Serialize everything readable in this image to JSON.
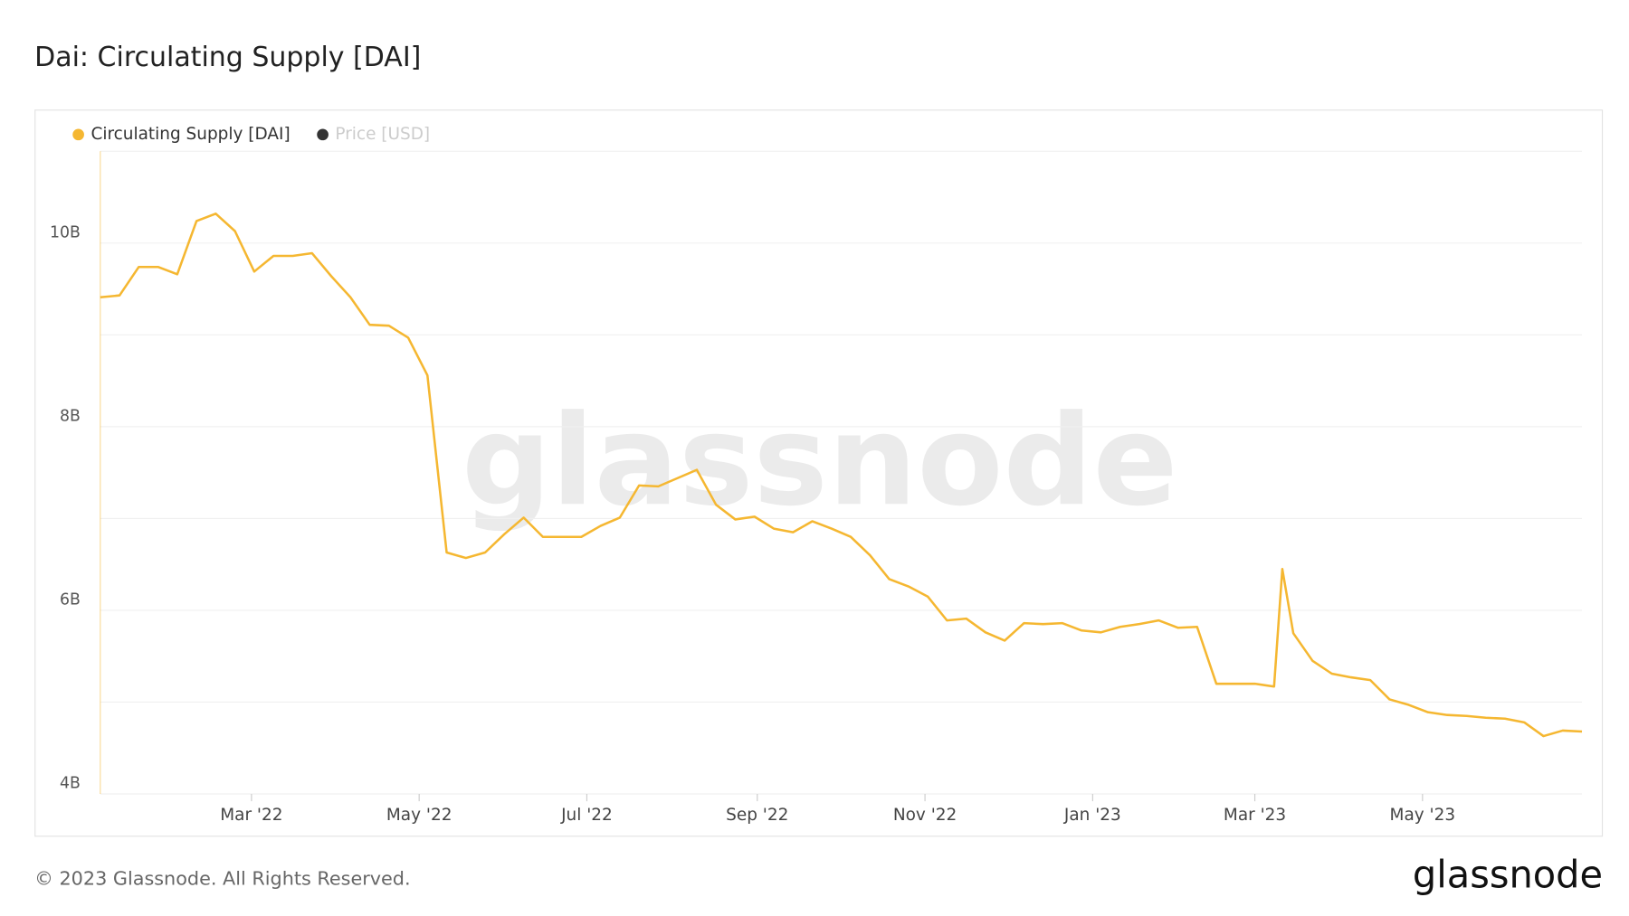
{
  "chart_data": {
    "type": "line",
    "title": "Dai: Circulating Supply [DAI]",
    "x": [
      "2022-01-05",
      "2022-01-12",
      "2022-01-19",
      "2022-01-26",
      "2022-02-02",
      "2022-02-09",
      "2022-02-16",
      "2022-02-23",
      "2022-03-02",
      "2022-03-09",
      "2022-03-16",
      "2022-03-23",
      "2022-03-30",
      "2022-04-06",
      "2022-04-13",
      "2022-04-20",
      "2022-04-27",
      "2022-05-04",
      "2022-05-11",
      "2022-05-18",
      "2022-05-25",
      "2022-06-01",
      "2022-06-08",
      "2022-06-15",
      "2022-06-22",
      "2022-06-29",
      "2022-07-06",
      "2022-07-13",
      "2022-07-20",
      "2022-07-27",
      "2022-08-03",
      "2022-08-10",
      "2022-08-17",
      "2022-08-24",
      "2022-08-31",
      "2022-09-07",
      "2022-09-14",
      "2022-09-21",
      "2022-09-28",
      "2022-10-05",
      "2022-10-12",
      "2022-10-19",
      "2022-10-26",
      "2022-11-02",
      "2022-11-09",
      "2022-11-16",
      "2022-11-23",
      "2022-11-30",
      "2022-12-07",
      "2022-12-14",
      "2022-12-21",
      "2022-12-28",
      "2023-01-04",
      "2023-01-11",
      "2023-01-18",
      "2023-01-25",
      "2023-02-01",
      "2023-02-08",
      "2023-02-15",
      "2023-02-22",
      "2023-03-01",
      "2023-03-08",
      "2023-03-11",
      "2023-03-15",
      "2023-03-22",
      "2023-03-29",
      "2023-04-05",
      "2023-04-12",
      "2023-04-19",
      "2023-04-26",
      "2023-05-03",
      "2023-05-10",
      "2023-05-17",
      "2023-05-24",
      "2023-05-31",
      "2023-06-07",
      "2023-06-14",
      "2023-06-21",
      "2023-06-28"
    ],
    "series": [
      {
        "name": "Circulating Supply [DAI]",
        "color": "#f5b731",
        "values": [
          9.41,
          9.43,
          9.74,
          9.74,
          9.66,
          10.24,
          10.32,
          10.13,
          9.69,
          9.86,
          9.86,
          9.89,
          9.64,
          9.41,
          9.11,
          9.1,
          8.97,
          8.56,
          6.63,
          6.57,
          6.63,
          6.83,
          7.01,
          6.8,
          6.8,
          6.8,
          6.92,
          7.01,
          7.36,
          7.35,
          7.44,
          7.53,
          7.15,
          6.99,
          7.02,
          6.89,
          6.85,
          6.97,
          6.89,
          6.8,
          6.6,
          6.34,
          6.26,
          6.15,
          5.89,
          5.91,
          5.76,
          5.67,
          5.86,
          5.85,
          5.86,
          5.78,
          5.76,
          5.82,
          5.85,
          5.89,
          5.81,
          5.82,
          5.2,
          5.2,
          5.2,
          5.17,
          6.45,
          5.75,
          5.45,
          5.31,
          5.27,
          5.24,
          5.03,
          4.97,
          4.89,
          4.86,
          4.85,
          4.83,
          4.82,
          4.78,
          4.63,
          4.69,
          4.68
        ]
      },
      {
        "name": "Price [USD]",
        "color": "#333333",
        "visible": false
      }
    ],
    "xlim": [
      "2022-01-05",
      "2023-06-28"
    ],
    "xticks": [
      {
        "value": "2022-03-01",
        "label": "Mar '22"
      },
      {
        "value": "2022-05-01",
        "label": "May '22"
      },
      {
        "value": "2022-07-01",
        "label": "Jul '22"
      },
      {
        "value": "2022-09-01",
        "label": "Sep '22"
      },
      {
        "value": "2022-11-01",
        "label": "Nov '22"
      },
      {
        "value": "2023-01-01",
        "label": "Jan '23"
      },
      {
        "value": "2023-03-01",
        "label": "Mar '23"
      },
      {
        "value": "2023-05-01",
        "label": "May '23"
      }
    ],
    "ylim": [
      4,
      11
    ],
    "yticks": [
      {
        "value": 4,
        "label": "4B"
      },
      {
        "value": 5,
        "label": null
      },
      {
        "value": 6,
        "label": "6B"
      },
      {
        "value": 7,
        "label": null
      },
      {
        "value": 8,
        "label": "8B"
      },
      {
        "value": 9,
        "label": null
      },
      {
        "value": 10,
        "label": "10B"
      },
      {
        "value": 11,
        "label": null
      }
    ],
    "grid": true,
    "legend": "top-left"
  },
  "watermark": "glassnode",
  "footer": {
    "copyright": "© 2023 Glassnode. All Rights Reserved.",
    "logo": "glassnode"
  }
}
